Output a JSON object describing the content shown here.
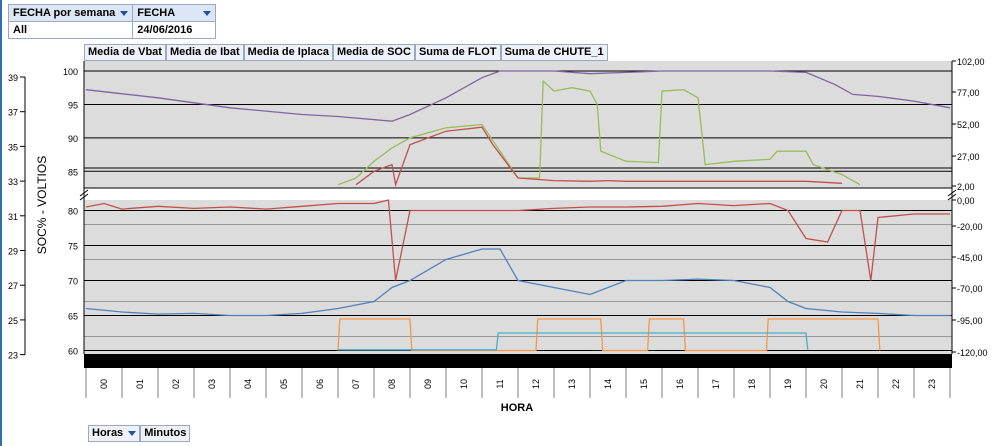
{
  "filters": {
    "week_label": "FECHA por semana",
    "week_value": "All",
    "date_label": "FECHA",
    "date_value": "24/06/2016"
  },
  "legend_buttons": [
    "Media de Vbat",
    "Media de Ibat",
    "Media de Iplaca",
    "Media de SOC",
    "Suma de FLOT",
    "Suma de CHUTE_1"
  ],
  "bottom_buttons": {
    "hours_label": "Horas",
    "minutes_label": "Minutos"
  },
  "chart_data": {
    "type": "line",
    "xlabel": "HORA",
    "ylabel": "SOC% - VOLTIOS",
    "x_ticks": [
      "00",
      "01",
      "02",
      "03",
      "04",
      "05",
      "06",
      "07",
      "08",
      "09",
      "10",
      "11",
      "12",
      "13",
      "14",
      "15",
      "16",
      "17",
      "18",
      "19",
      "20",
      "21",
      "22",
      "23"
    ],
    "left_outer_ticks": [
      "39",
      "37",
      "35",
      "33",
      "31",
      "29",
      "27",
      "25",
      "23"
    ],
    "left_inner_upper_ticks": [
      "100",
      "95",
      "90",
      "85"
    ],
    "left_inner_lower_ticks": [
      "80",
      "75",
      "70",
      "65",
      "60"
    ],
    "right_upper_ticks": [
      "102,00",
      "77,00",
      "52,00",
      "27,00",
      "2,00"
    ],
    "right_lower_ticks": [
      "0,00",
      "-20,00",
      "-45,00",
      "-70,00",
      "-95,00",
      "-120,00"
    ],
    "series": [
      {
        "color": "#8064a2",
        "panel": "upper",
        "points": [
          [
            0,
            97.2
          ],
          [
            2,
            96.0
          ],
          [
            4,
            94.5
          ],
          [
            6,
            93.5
          ],
          [
            7,
            93.2
          ],
          [
            8.5,
            92.5
          ],
          [
            9,
            93.5
          ],
          [
            10,
            96
          ],
          [
            11,
            99
          ],
          [
            11.5,
            100
          ],
          [
            13,
            100
          ],
          [
            14,
            99.6
          ],
          [
            15,
            99.8
          ],
          [
            16,
            100
          ],
          [
            17,
            100
          ],
          [
            19,
            100
          ],
          [
            20,
            99.8
          ],
          [
            20.8,
            98
          ],
          [
            21.3,
            96.5
          ],
          [
            22,
            96.2
          ],
          [
            23,
            95.5
          ],
          [
            24,
            94.5
          ]
        ]
      },
      {
        "color": "#9bbb59",
        "panel": "upper",
        "points": [
          [
            7,
            83
          ],
          [
            7.5,
            84
          ],
          [
            8,
            86.5
          ],
          [
            8.5,
            88.5
          ],
          [
            9,
            90
          ],
          [
            10,
            91.5
          ],
          [
            11,
            92
          ],
          [
            11.5,
            88
          ],
          [
            12,
            84
          ],
          [
            12.2,
            84
          ],
          [
            12.6,
            84
          ],
          [
            12.7,
            98.5
          ],
          [
            13,
            97
          ],
          [
            13.5,
            97.5
          ],
          [
            14,
            97
          ],
          [
            14.2,
            95
          ],
          [
            14.3,
            88
          ],
          [
            15,
            86.5
          ],
          [
            15.9,
            86.3
          ],
          [
            16,
            97
          ],
          [
            16.6,
            97.2
          ],
          [
            17,
            96
          ],
          [
            17.2,
            86
          ],
          [
            18,
            86.5
          ],
          [
            19,
            86.8
          ],
          [
            19.2,
            88
          ],
          [
            20,
            88
          ],
          [
            20.2,
            86
          ],
          [
            21,
            84.5
          ],
          [
            21.5,
            83
          ]
        ]
      },
      {
        "color": "#c0504d",
        "panel": "upper",
        "points": [
          [
            7.5,
            83
          ],
          [
            8,
            85
          ],
          [
            8.5,
            86
          ],
          [
            8.6,
            83
          ],
          [
            9,
            89
          ],
          [
            10,
            91
          ],
          [
            11,
            91.6
          ],
          [
            11.3,
            89
          ],
          [
            12,
            84
          ],
          [
            13,
            83.6
          ],
          [
            14,
            83.5
          ],
          [
            14.5,
            83.6
          ],
          [
            15,
            83.5
          ],
          [
            20,
            83.5
          ],
          [
            21,
            83.2
          ]
        ]
      },
      {
        "color": "#c0504d",
        "panel": "lower",
        "points": [
          [
            0,
            80.5
          ],
          [
            0.5,
            81
          ],
          [
            1,
            80.2
          ],
          [
            2,
            80.6
          ],
          [
            3,
            80.3
          ],
          [
            4,
            80.5
          ],
          [
            5,
            80.2
          ],
          [
            6,
            80.6
          ],
          [
            7,
            81
          ],
          [
            8,
            81
          ],
          [
            8.4,
            81.5
          ],
          [
            8.6,
            70
          ],
          [
            9,
            80
          ],
          [
            10,
            80
          ],
          [
            11,
            80
          ],
          [
            12,
            80
          ],
          [
            13,
            80.3
          ],
          [
            14,
            80.5
          ],
          [
            15,
            80.5
          ],
          [
            16,
            80.6
          ],
          [
            17,
            81
          ],
          [
            18,
            80.7
          ],
          [
            19,
            81
          ],
          [
            19.5,
            80
          ],
          [
            20,
            76
          ],
          [
            20.6,
            75.5
          ],
          [
            21,
            80
          ],
          [
            21.5,
            80
          ],
          [
            21.8,
            70
          ],
          [
            22,
            79
          ],
          [
            23,
            79.5
          ],
          [
            24,
            79.5
          ]
        ]
      },
      {
        "color": "#4f81bd",
        "panel": "lower",
        "points": [
          [
            0,
            66
          ],
          [
            1,
            65.5
          ],
          [
            2,
            65.2
          ],
          [
            3,
            65.3
          ],
          [
            4,
            65
          ],
          [
            5,
            65
          ],
          [
            6,
            65.3
          ],
          [
            7,
            66
          ],
          [
            8,
            67
          ],
          [
            8.5,
            69
          ],
          [
            9,
            70
          ],
          [
            10,
            73
          ],
          [
            11,
            74.5
          ],
          [
            11.5,
            74.5
          ],
          [
            12,
            70
          ],
          [
            13,
            69
          ],
          [
            14,
            68
          ],
          [
            15,
            70
          ],
          [
            16,
            70
          ],
          [
            17,
            70.2
          ],
          [
            18,
            70
          ],
          [
            19,
            69
          ],
          [
            19.5,
            67
          ],
          [
            20,
            66
          ],
          [
            21,
            65.5
          ],
          [
            22,
            65.3
          ],
          [
            23,
            65
          ],
          [
            24,
            65
          ]
        ]
      },
      {
        "color": "#f79646",
        "panel": "lower",
        "points": [
          [
            7,
            60
          ],
          [
            7.05,
            64.5
          ],
          [
            9,
            64.5
          ],
          [
            9.05,
            60
          ],
          [
            12.5,
            60
          ],
          [
            12.55,
            64.5
          ],
          [
            14.3,
            64.5
          ],
          [
            14.35,
            60
          ],
          [
            15.6,
            60
          ],
          [
            15.65,
            64.5
          ],
          [
            16.6,
            64.5
          ],
          [
            16.65,
            60
          ],
          [
            18.9,
            60
          ],
          [
            18.95,
            64.5
          ],
          [
            22,
            64.5
          ],
          [
            22.05,
            60
          ]
        ]
      },
      {
        "color": "#4bacc6",
        "panel": "lower",
        "points": [
          [
            7,
            60.1
          ],
          [
            9,
            60.1
          ],
          [
            11.4,
            60.1
          ],
          [
            11.45,
            62.5
          ],
          [
            20,
            62.5
          ],
          [
            20.05,
            60.1
          ]
        ]
      }
    ]
  }
}
